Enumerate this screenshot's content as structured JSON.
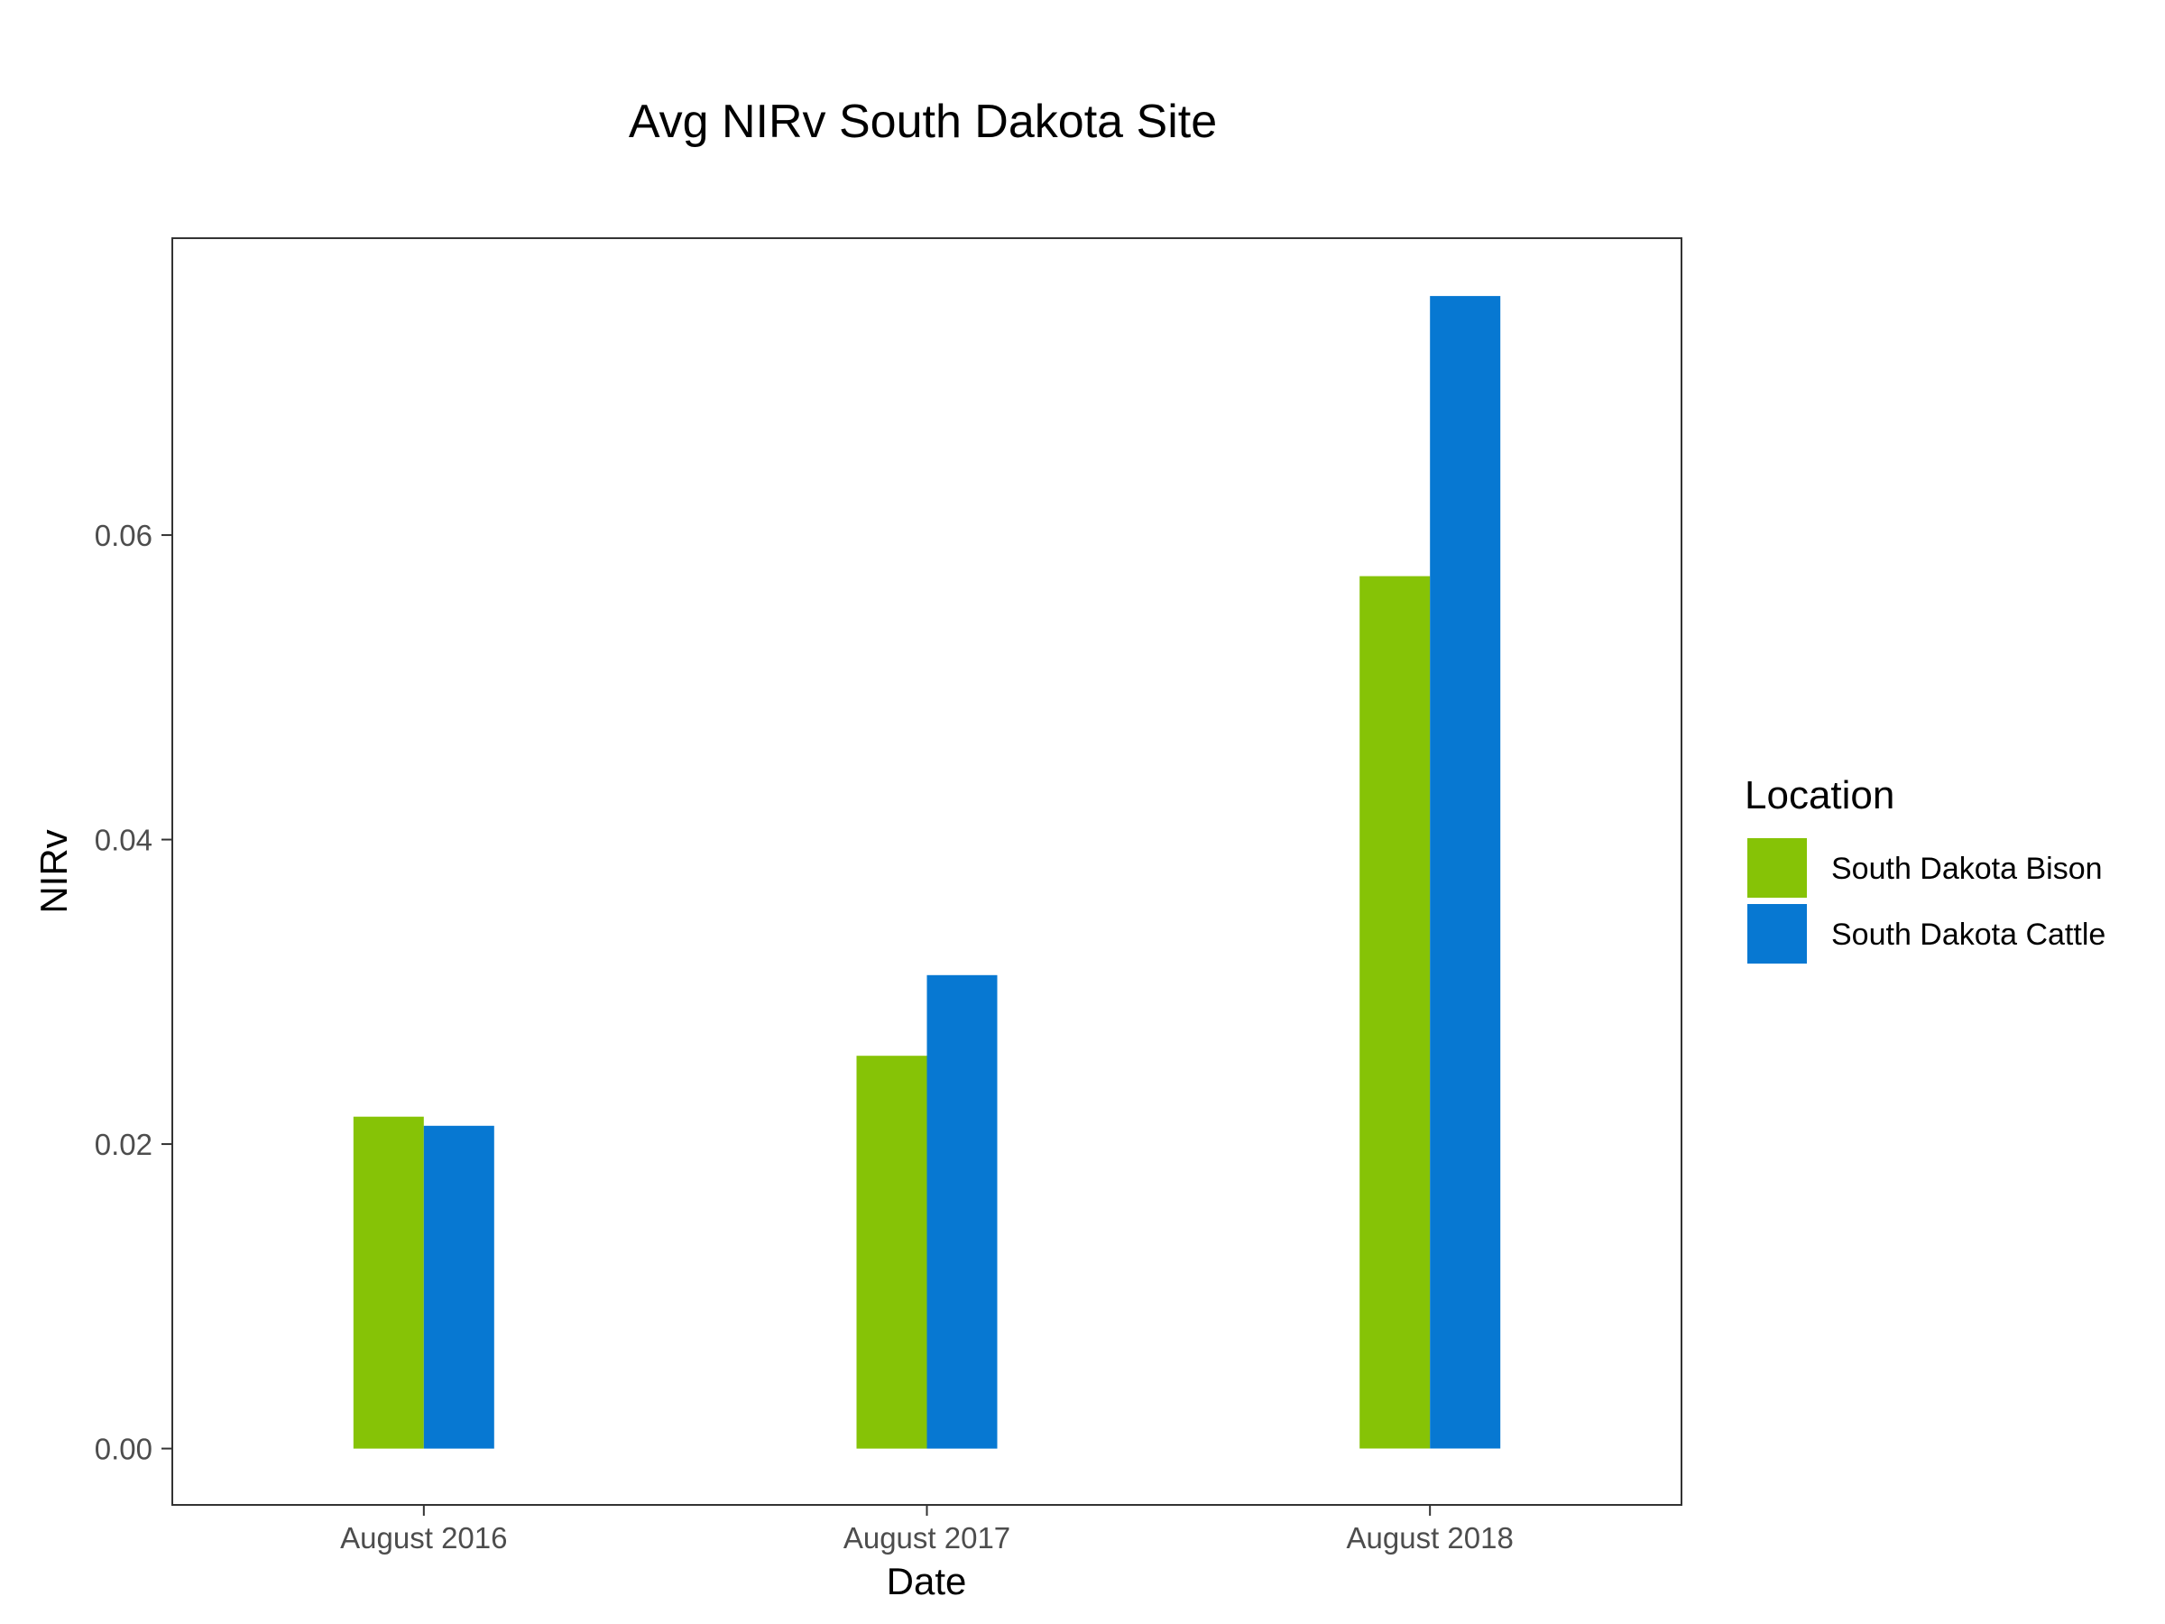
{
  "chart_data": {
    "type": "bar",
    "title": "Avg NIRv South Dakota Site",
    "xlabel": "Date",
    "ylabel": "NIRv",
    "categories": [
      "August 2016",
      "August 2017",
      "August 2018"
    ],
    "series": [
      {
        "name": "South Dakota Bison",
        "color": "#86C306",
        "values": [
          0.0218,
          0.0258,
          0.0573
        ]
      },
      {
        "name": "South Dakota Cattle",
        "color": "#0778D2",
        "values": [
          0.0212,
          0.0311,
          0.0757
        ]
      }
    ],
    "ylim": [
      -0.0037,
      0.0795
    ],
    "yticks": [
      0.0,
      0.02,
      0.04,
      0.06
    ],
    "ytick_labels": [
      "0.00",
      "0.02",
      "0.04",
      "0.06"
    ],
    "grid": false,
    "legend": {
      "title": "Location",
      "placement": "right"
    }
  }
}
